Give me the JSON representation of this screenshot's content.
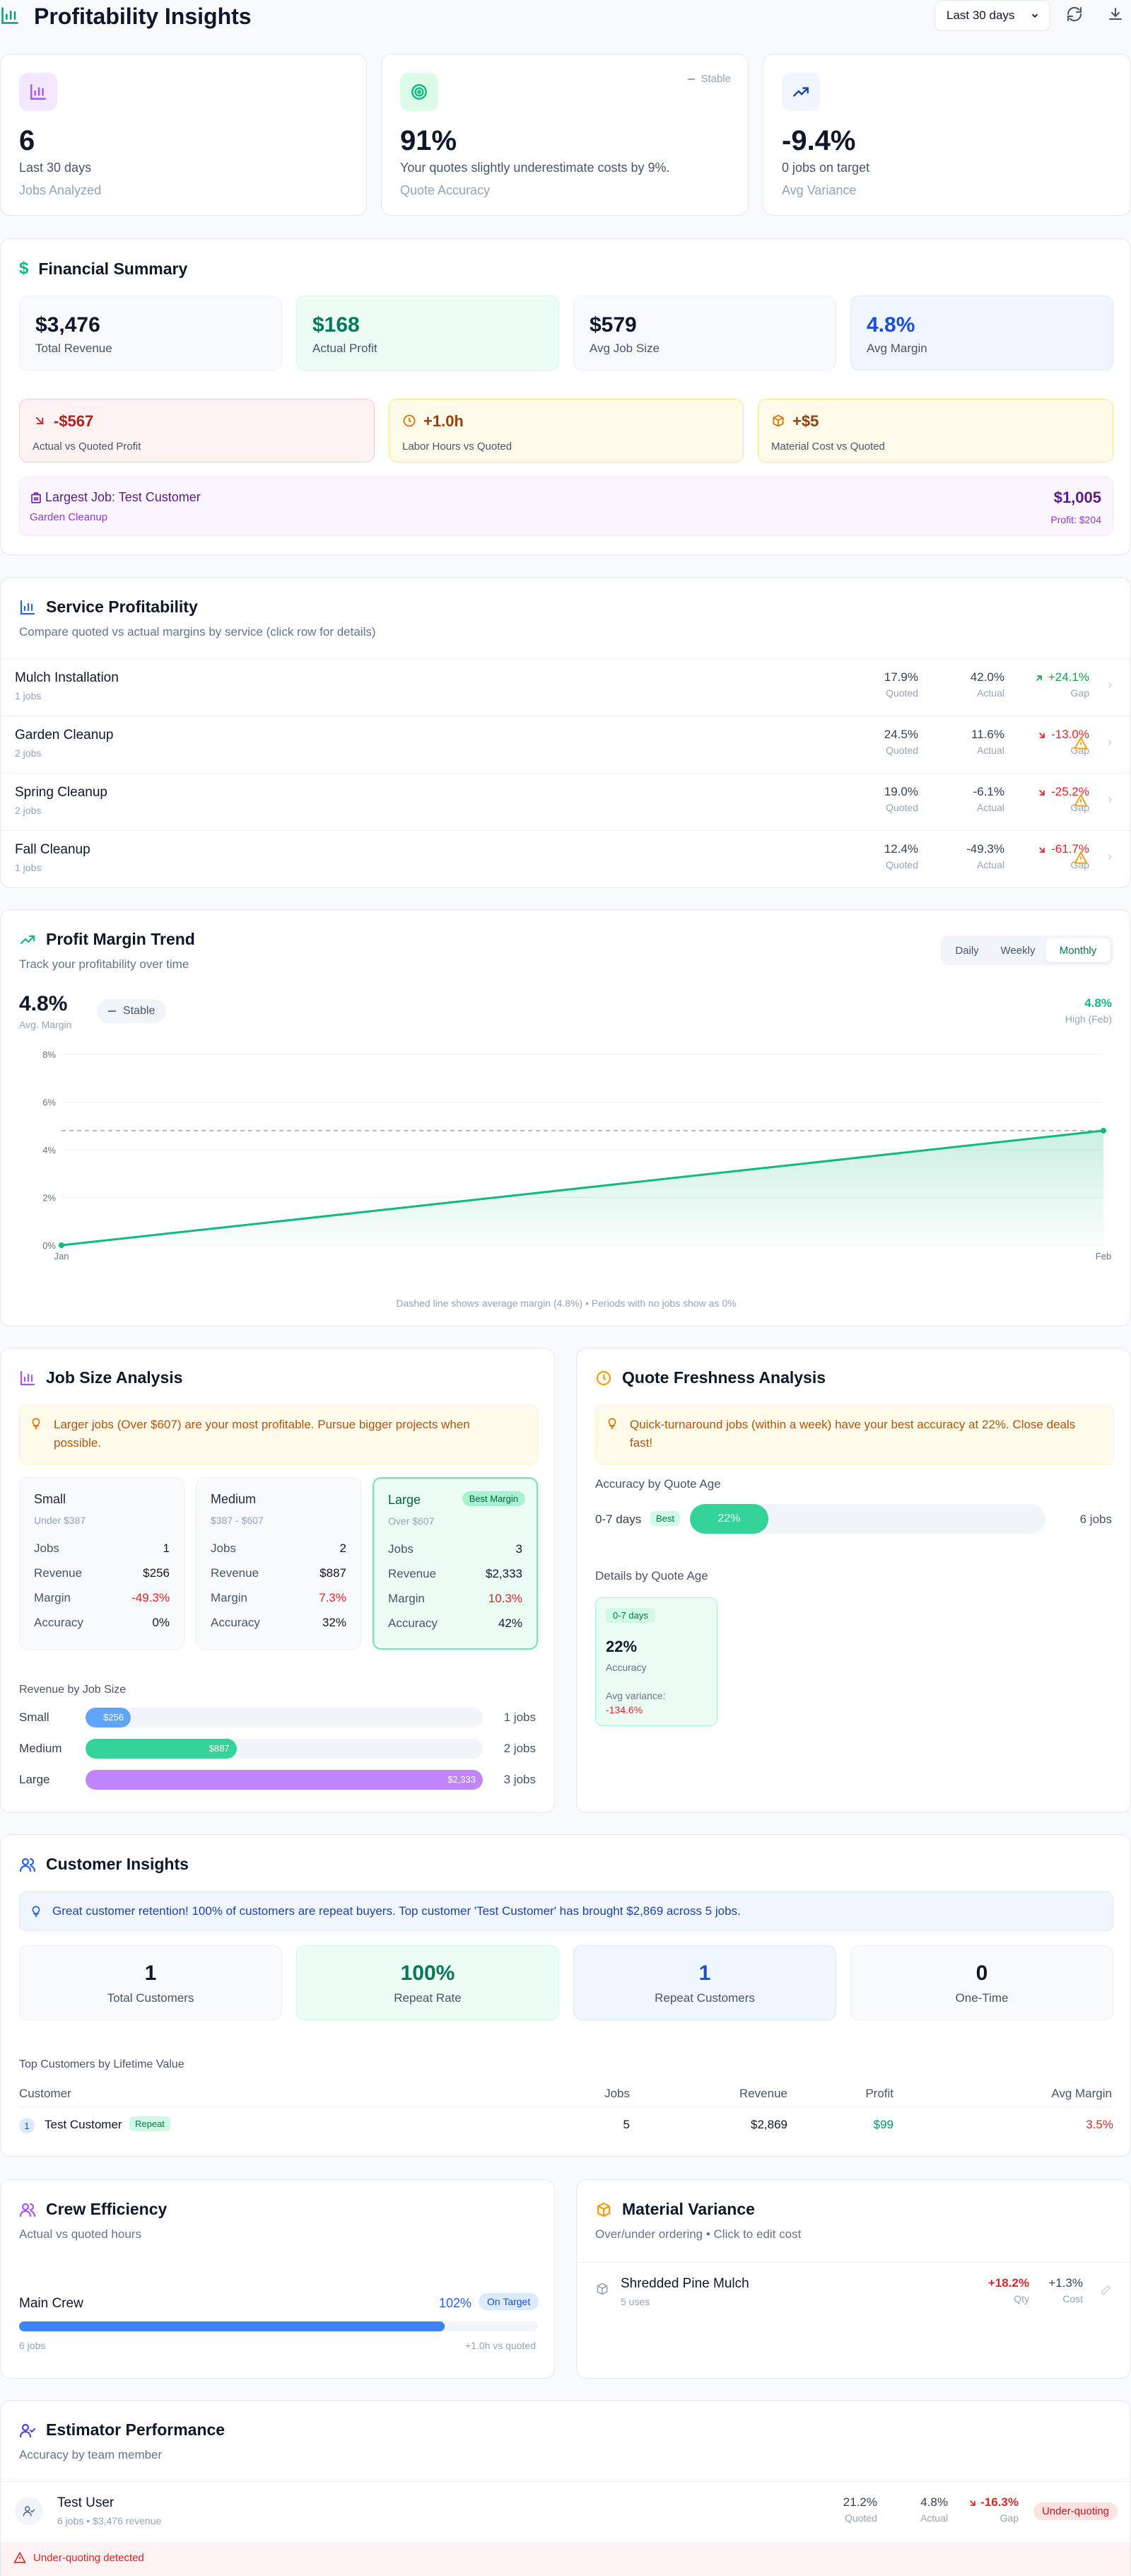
{
  "header": {
    "title": "Profitability Insights",
    "range": "Last 30 days"
  },
  "kpis": [
    {
      "value": "6",
      "line1": "Last 30 days",
      "line2": "Jobs Analyzed"
    },
    {
      "value": "91%",
      "line1": "Your quotes slightly underestimate costs by 9%.",
      "line2": "Quote Accuracy",
      "badge": "Stable"
    },
    {
      "value": "-9.4%",
      "line1": "0 jobs on target",
      "line2": "Avg Variance"
    }
  ],
  "financial": {
    "title": "Financial Summary",
    "stats": [
      {
        "value": "$3,476",
        "label": "Total Revenue"
      },
      {
        "value": "$168",
        "label": "Actual Profit"
      },
      {
        "value": "$579",
        "label": "Avg Job Size"
      },
      {
        "value": "4.8%",
        "label": "Avg Margin"
      }
    ],
    "variances": [
      {
        "value": "-$567",
        "label": "Actual vs Quoted Profit"
      },
      {
        "value": "+1.0h",
        "label": "Labor Hours vs Quoted"
      },
      {
        "value": "+$5",
        "label": "Material Cost vs Quoted"
      }
    ],
    "largest": {
      "title": "Largest Job: Test Customer",
      "service": "Garden Cleanup",
      "amount": "$1,005",
      "profit": "Profit: $204"
    }
  },
  "service": {
    "title": "Service Profitability",
    "subtitle": "Compare quoted vs actual margins by service (click row for details)",
    "quoted_label": "Quoted",
    "actual_label": "Actual",
    "gap_label": "Gap",
    "rows": [
      {
        "name": "Mulch Installation",
        "jobs": "1 jobs",
        "quoted": "17.9%",
        "actual": "42.0%",
        "gap": "+24.1%"
      },
      {
        "name": "Garden Cleanup",
        "jobs": "2 jobs",
        "quoted": "24.5%",
        "actual": "11.6%",
        "gap": "-13.0%"
      },
      {
        "name": "Spring Cleanup",
        "jobs": "2 jobs",
        "quoted": "19.0%",
        "actual": "-6.1%",
        "gap": "-25.2%"
      },
      {
        "name": "Fall Cleanup",
        "jobs": "1 jobs",
        "quoted": "12.4%",
        "actual": "-49.3%",
        "gap": "-61.7%"
      }
    ]
  },
  "trend": {
    "title": "Profit Margin Trend",
    "subtitle": "Track your profitability over time",
    "tabs": [
      "Daily",
      "Weekly",
      "Monthly"
    ],
    "avg_value": "4.8%",
    "avg_label": "Avg. Margin",
    "status": "Stable",
    "high_value": "4.8%",
    "high_label": "High (Feb)",
    "footnote": "Dashed line shows average margin (4.8%) • Periods with no jobs show as 0%"
  },
  "chart_data": {
    "type": "area",
    "categories": [
      "Jan",
      "Feb"
    ],
    "series": [
      {
        "values": [
          0,
          4.8
        ]
      }
    ],
    "average": 4.8,
    "ylim": [
      0,
      8
    ],
    "yticks": [
      "0%",
      "2%",
      "4%",
      "6%",
      "8%"
    ],
    "grid": true
  },
  "jobsize": {
    "title": "Job Size Analysis",
    "insight": "Larger jobs (Over $607) are your most profitable. Pursue bigger projects when possible.",
    "labels": {
      "jobs": "Jobs",
      "revenue": "Revenue",
      "margin": "Margin",
      "accuracy": "Accuracy"
    },
    "buckets": [
      {
        "name": "Small",
        "range": "Under $387",
        "jobs": "1",
        "revenue": "$256",
        "margin": "-49.3%",
        "accuracy": "0%"
      },
      {
        "name": "Medium",
        "range": "$387 - $607",
        "jobs": "2",
        "revenue": "$887",
        "margin": "7.3%",
        "accuracy": "32%"
      },
      {
        "name": "Large",
        "range": "Over $607",
        "jobs": "3",
        "revenue": "$2,333",
        "margin": "10.3%",
        "accuracy": "42%",
        "badge": "Best Margin"
      }
    ],
    "rev_title": "Revenue by Job Size",
    "bars": [
      {
        "label": "Small",
        "value": "$256",
        "amount": 256,
        "jobs": "1 jobs"
      },
      {
        "label": "Medium",
        "value": "$887",
        "amount": 887,
        "jobs": "2 jobs"
      },
      {
        "label": "Large",
        "value": "$2,333",
        "amount": 2333,
        "jobs": "3 jobs"
      }
    ]
  },
  "freshness": {
    "title": "Quote Freshness Analysis",
    "insight": "Quick-turnaround jobs (within a week) have your best accuracy at 22%. Close deals fast!",
    "acc_title": "Accuracy by Quote Age",
    "bucket": "0-7 days",
    "best": "Best",
    "pct": "22%",
    "pct_value": 22,
    "jobs": "6 jobs",
    "details_title": "Details by Quote Age",
    "detail": {
      "tag": "0-7 days",
      "value": "22%",
      "label": "Accuracy",
      "var_label": "Avg variance:",
      "var_value": "-134.6%"
    }
  },
  "customers": {
    "title": "Customer Insights",
    "insight": "Great customer retention! 100% of customers are repeat buyers. Top customer 'Test Customer' has brought $2,869 across 5 jobs.",
    "stats": [
      {
        "value": "1",
        "label": "Total Customers"
      },
      {
        "value": "100%",
        "label": "Repeat Rate"
      },
      {
        "value": "1",
        "label": "Repeat Customers"
      },
      {
        "value": "0",
        "label": "One-Time"
      }
    ],
    "top_title": "Top Customers by Lifetime Value",
    "cols": [
      "Customer",
      "Jobs",
      "Revenue",
      "Profit",
      "Avg Margin"
    ],
    "rows": [
      {
        "rank": "1",
        "name": "Test Customer",
        "tag": "Repeat",
        "jobs": "5",
        "revenue": "$2,869",
        "profit": "$99",
        "margin": "3.5%"
      }
    ]
  },
  "crew": {
    "title": "Crew Efficiency",
    "subtitle": "Actual vs quoted hours",
    "name": "Main Crew",
    "pct": "102%",
    "status": "On Target",
    "fill": 0.82,
    "jobs": "6 jobs",
    "delta": "+1.0h vs quoted"
  },
  "material": {
    "title": "Material Variance",
    "subtitle": "Over/under ordering • Click to edit cost",
    "item": "Shredded Pine Mulch",
    "uses": "5 uses",
    "qty": "+18.2%",
    "qty_label": "Qty",
    "cost": "+1.3%",
    "cost_label": "Cost"
  },
  "estimator": {
    "title": "Estimator Performance",
    "subtitle": "Accuracy by team member",
    "name": "Test User",
    "meta": "6 jobs • $3,476 revenue",
    "quoted": "21.2%",
    "actual": "4.8%",
    "gap": "-16.3%",
    "quoted_label": "Quoted",
    "actual_label": "Actual",
    "gap_label": "Gap",
    "badge": "Under-quoting",
    "warning": "Under-quoting detected"
  },
  "colors": {
    "green": "#10b981",
    "red": "#dc2626",
    "amber": "#f59e0b",
    "purple": "#a855f7",
    "blue": "#3b82f6"
  }
}
